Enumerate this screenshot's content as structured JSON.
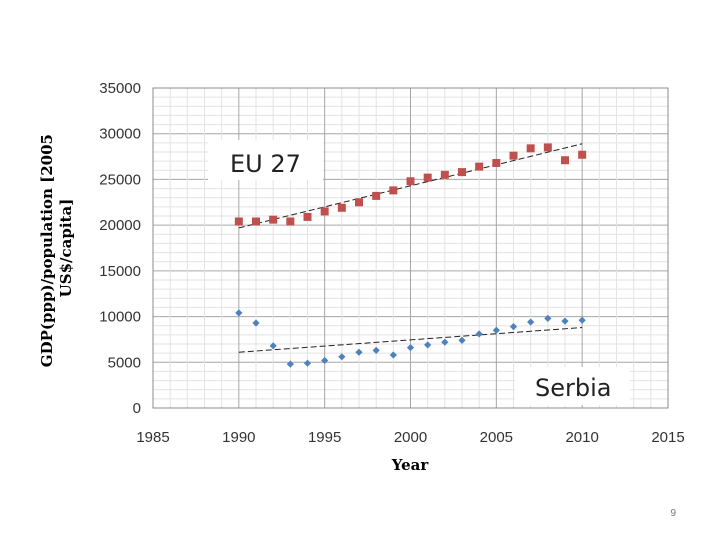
{
  "slide": {
    "page_number": "9"
  },
  "chart_data": {
    "type": "scatter",
    "xlabel": "Year",
    "ylabel_lines": [
      "GDP(ppp)/population [2005",
      "US$/capita]"
    ],
    "xlim": [
      1985,
      2015
    ],
    "ylim": [
      0,
      35000
    ],
    "xticks": [
      1985,
      1990,
      1995,
      2000,
      2005,
      2010,
      2015
    ],
    "xtick_labels": [
      "1985",
      "1990",
      "1995",
      "2000",
      "2005",
      "2010",
      "2015"
    ],
    "yticks": [
      0,
      5000,
      10000,
      15000,
      20000,
      25000,
      30000,
      35000
    ],
    "ytick_labels": [
      "0",
      "5000",
      "10000",
      "15000",
      "20000",
      "25000",
      "30000",
      "35000"
    ],
    "series": [
      {
        "name": "EU 27",
        "label": "EU 27",
        "marker": "square",
        "color": "#c0504d",
        "x": [
          1990,
          1991,
          1992,
          1993,
          1994,
          1995,
          1996,
          1997,
          1998,
          1999,
          2000,
          2001,
          2002,
          2003,
          2004,
          2005,
          2006,
          2007,
          2008,
          2009,
          2010
        ],
        "y": [
          20400,
          20400,
          20600,
          20400,
          20900,
          21500,
          21900,
          22500,
          23200,
          23800,
          24800,
          25200,
          25500,
          25800,
          26400,
          26800,
          27600,
          28400,
          28500,
          27100,
          27700
        ],
        "trend": [
          [
            1990,
            19700
          ],
          [
            2010,
            28900
          ]
        ]
      },
      {
        "name": "Serbia",
        "label": "Serbia",
        "marker": "diamond",
        "color": "#4f81bd",
        "x": [
          1990,
          1991,
          1992,
          1993,
          1994,
          1995,
          1996,
          1997,
          1998,
          1999,
          2000,
          2001,
          2002,
          2003,
          2004,
          2005,
          2006,
          2007,
          2008,
          2009,
          2010
        ],
        "y": [
          10400,
          9300,
          6800,
          4800,
          4900,
          5200,
          5600,
          6100,
          6300,
          5800,
          6600,
          6900,
          7200,
          7400,
          8100,
          8500,
          8900,
          9400,
          9800,
          9500,
          9600
        ],
        "trend": [
          [
            1990,
            6100
          ],
          [
            2010,
            8800
          ]
        ]
      }
    ]
  }
}
